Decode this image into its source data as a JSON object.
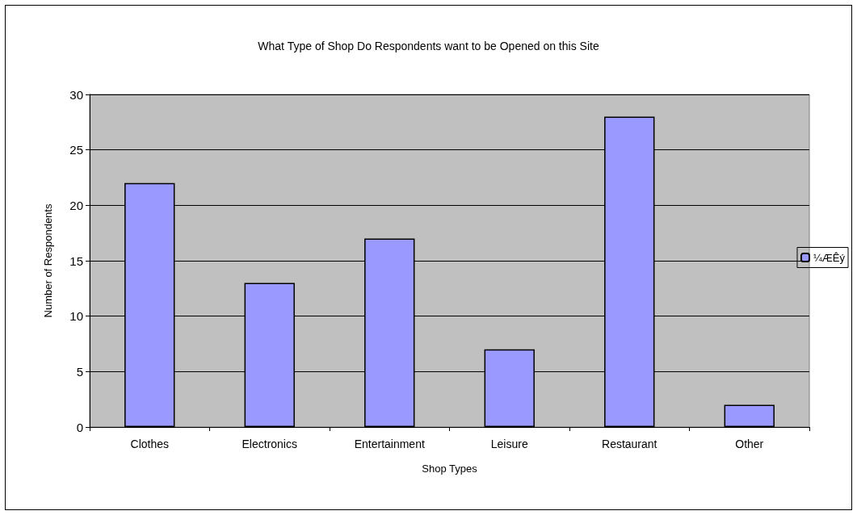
{
  "chart_data": {
    "type": "bar",
    "title": "What Type of Shop Do Respondents want to be Opened on this Site",
    "xlabel": "Shop Types",
    "ylabel": "Number of Respondents",
    "categories": [
      "Clothes",
      "Electronics",
      "Entertainment",
      "Leisure",
      "Restaurant",
      "Other"
    ],
    "series": [
      {
        "name": "¼ÆÊý",
        "color": "#9999ff",
        "values": [
          22,
          13,
          17,
          7,
          28,
          2
        ]
      }
    ],
    "ylim": [
      0,
      30
    ],
    "yticks": [
      0,
      5,
      10,
      15,
      20,
      25,
      30
    ],
    "grid": "y",
    "legend": "right"
  }
}
